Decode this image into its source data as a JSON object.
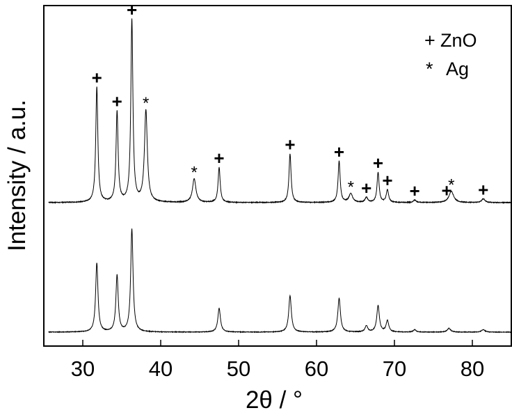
{
  "chart_data": {
    "type": "line",
    "xlabel": "2θ / °",
    "ylabel": "Intensity  / a.u.",
    "xlim": [
      25,
      85
    ],
    "xticks": [
      30,
      40,
      50,
      60,
      70,
      80
    ],
    "legend": {
      "position": "top-right",
      "entries": [
        {
          "symbol": "+",
          "label": "ZnO"
        },
        {
          "symbol": "*",
          "label": "Ag"
        }
      ]
    },
    "series": [
      {
        "peaks": [
          {
            "x": 31.8,
            "h": 0.92,
            "w": 0.16
          },
          {
            "x": 34.4,
            "h": 0.72,
            "w": 0.16
          },
          {
            "x": 36.3,
            "h": 1.45,
            "w": 0.16
          },
          {
            "x": 38.1,
            "h": 0.73,
            "w": 0.22
          },
          {
            "x": 44.3,
            "h": 0.19,
            "w": 0.26
          },
          {
            "x": 47.5,
            "h": 0.28,
            "w": 0.16
          },
          {
            "x": 56.6,
            "h": 0.39,
            "w": 0.16
          },
          {
            "x": 62.9,
            "h": 0.33,
            "w": 0.16
          },
          {
            "x": 64.4,
            "h": 0.07,
            "w": 0.28
          },
          {
            "x": 66.4,
            "h": 0.04,
            "w": 0.2
          },
          {
            "x": 67.9,
            "h": 0.24,
            "w": 0.16
          },
          {
            "x": 69.1,
            "h": 0.1,
            "w": 0.18
          },
          {
            "x": 72.6,
            "h": 0.02,
            "w": 0.2
          },
          {
            "x": 77.3,
            "h": 0.09,
            "w": 0.36
          },
          {
            "x": 81.4,
            "h": 0.03,
            "w": 0.25
          }
        ],
        "markers": [
          {
            "x": 31.8,
            "symbol": "+"
          },
          {
            "x": 34.4,
            "symbol": "+"
          },
          {
            "x": 36.3,
            "symbol": "+"
          },
          {
            "x": 38.1,
            "symbol": "*"
          },
          {
            "x": 44.3,
            "symbol": "*"
          },
          {
            "x": 47.5,
            "symbol": "+"
          },
          {
            "x": 56.6,
            "symbol": "+"
          },
          {
            "x": 62.9,
            "symbol": "+"
          },
          {
            "x": 64.4,
            "symbol": "*"
          },
          {
            "x": 66.4,
            "symbol": "+"
          },
          {
            "x": 67.9,
            "symbol": "+"
          },
          {
            "x": 69.1,
            "symbol": "+"
          },
          {
            "x": 72.6,
            "symbol": "+"
          },
          {
            "x": 76.7,
            "symbol": "+"
          },
          {
            "x": 77.3,
            "symbol": "*"
          },
          {
            "x": 81.4,
            "symbol": "+"
          }
        ]
      },
      {
        "peaks": [
          {
            "x": 31.8,
            "h": 0.55,
            "w": 0.18
          },
          {
            "x": 34.4,
            "h": 0.45,
            "w": 0.18
          },
          {
            "x": 36.3,
            "h": 0.82,
            "w": 0.18
          },
          {
            "x": 47.5,
            "h": 0.19,
            "w": 0.2
          },
          {
            "x": 56.6,
            "h": 0.29,
            "w": 0.2
          },
          {
            "x": 62.9,
            "h": 0.27,
            "w": 0.2
          },
          {
            "x": 66.4,
            "h": 0.05,
            "w": 0.2
          },
          {
            "x": 67.9,
            "h": 0.21,
            "w": 0.2
          },
          {
            "x": 69.1,
            "h": 0.09,
            "w": 0.2
          },
          {
            "x": 72.6,
            "h": 0.02,
            "w": 0.2
          },
          {
            "x": 77.0,
            "h": 0.03,
            "w": 0.25
          },
          {
            "x": 81.4,
            "h": 0.02,
            "w": 0.25
          }
        ],
        "markers": []
      }
    ]
  }
}
